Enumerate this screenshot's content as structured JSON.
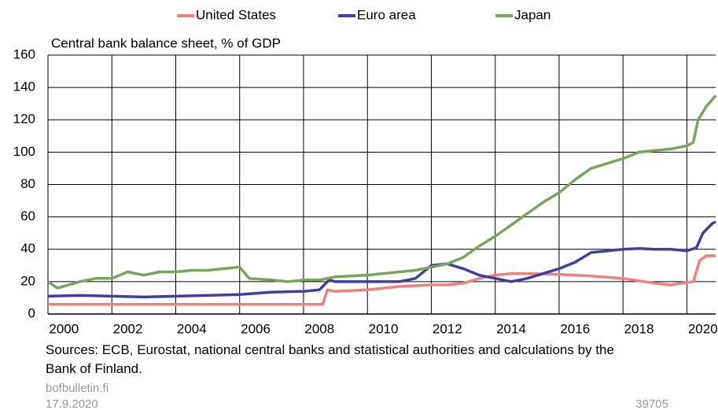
{
  "chart_data": {
    "type": "line",
    "title": "Central bank balance sheet, % of GDP",
    "source": "Sources: ECB, Eurostat, national central banks and statistical authorities and calculations by the Bank of Finland.",
    "site": "bofbulletin.fi",
    "date": "17.9.2020",
    "code": "39705",
    "legend": "top",
    "xlim": [
      2000,
      2020.9
    ],
    "xticks": [
      2000,
      2002,
      2004,
      2006,
      2008,
      2010,
      2012,
      2014,
      2016,
      2018,
      2020
    ],
    "ylim": [
      0,
      160
    ],
    "yticks": [
      0,
      20,
      40,
      60,
      80,
      100,
      120,
      140,
      160
    ],
    "grid": true,
    "series": [
      {
        "name": "United States",
        "color": "#f08080",
        "x": [
          2000,
          2002,
          2004,
          2006,
          2008,
          2008.6,
          2008.75,
          2009,
          2010,
          2011,
          2012,
          2012.5,
          2013,
          2013.5,
          2014,
          2014.5,
          2015,
          2016,
          2017,
          2018,
          2019,
          2019.5,
          2020,
          2020.2,
          2020.4,
          2020.6,
          2020.9
        ],
        "values": [
          6,
          6,
          6,
          6,
          6,
          6,
          15,
          14,
          15,
          17,
          18,
          18,
          19,
          22,
          24,
          25,
          25,
          24.5,
          23.5,
          22,
          19,
          18,
          19.5,
          20,
          33,
          36,
          36
        ]
      },
      {
        "name": "Euro area",
        "color": "#3f3f9f",
        "x": [
          2000,
          2001,
          2002,
          2003,
          2004,
          2005,
          2006,
          2007,
          2008,
          2008.5,
          2008.8,
          2009,
          2010,
          2011,
          2011.5,
          2012,
          2012.5,
          2013,
          2013.5,
          2014,
          2014.5,
          2015,
          2015.5,
          2016,
          2016.5,
          2017,
          2018,
          2018.5,
          2019,
          2019.5,
          2020,
          2020.3,
          2020.5,
          2020.8,
          2020.9
        ],
        "values": [
          11,
          11.5,
          11,
          10.5,
          11,
          11.5,
          12,
          13.5,
          14,
          15,
          21,
          20,
          20,
          20,
          22,
          30,
          31,
          28,
          24,
          22,
          20,
          22,
          25,
          28,
          32,
          38,
          40,
          40.5,
          40,
          40,
          39,
          41,
          50,
          56,
          57
        ]
      },
      {
        "name": "Japan",
        "color": "#7aa35f",
        "x": [
          2000,
          2000.3,
          2001,
          2001.5,
          2002,
          2002.5,
          2003,
          2003.5,
          2004,
          2004.5,
          2005,
          2005.5,
          2006,
          2006.3,
          2007,
          2007.5,
          2008,
          2008.5,
          2009,
          2010,
          2011,
          2011.5,
          2012,
          2012.5,
          2013,
          2013.5,
          2014,
          2014.5,
          2015,
          2015.5,
          2016,
          2016.5,
          2017,
          2017.5,
          2018,
          2018.5,
          2019,
          2019.5,
          2020,
          2020.2,
          2020.35,
          2020.6,
          2020.9
        ],
        "values": [
          20,
          16,
          20,
          22,
          22,
          26,
          24,
          26,
          26,
          27,
          27,
          28,
          29,
          22,
          21,
          20,
          21,
          21,
          23,
          24,
          26,
          27,
          29,
          31,
          35,
          42,
          48,
          55,
          62,
          69,
          75,
          83,
          90,
          93,
          96,
          100,
          101,
          102,
          104,
          106,
          120,
          128,
          135
        ]
      }
    ]
  }
}
